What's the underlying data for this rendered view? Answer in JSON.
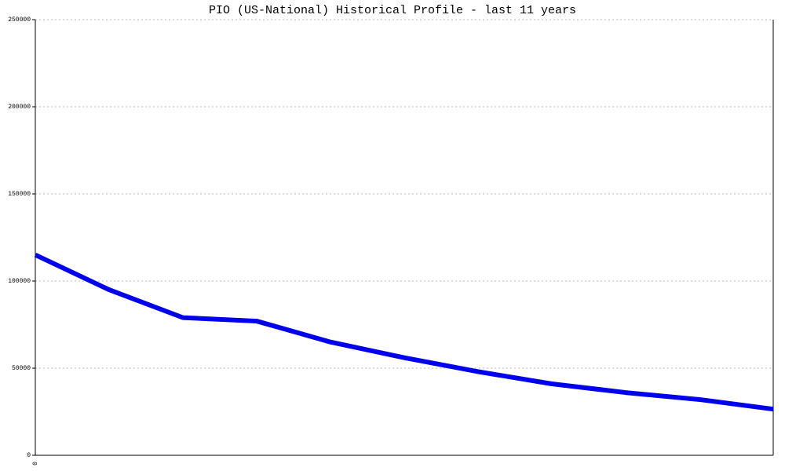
{
  "chart_data": {
    "type": "line",
    "title": "PIO (US-National) Historical Profile - last 11 years",
    "categories": [
      "0",
      null,
      null,
      null,
      null,
      null,
      null,
      null,
      null,
      null,
      null
    ],
    "series": [
      {
        "color": "#0000ee",
        "values": [
          115000,
          95000,
          79000,
          77000,
          65000,
          56000,
          48000,
          41000,
          36000,
          32000,
          26500
        ]
      }
    ],
    "ylim": [
      0,
      250000
    ],
    "yticks": [
      0,
      50000,
      100000,
      150000,
      200000,
      250000
    ],
    "grid": true
  }
}
